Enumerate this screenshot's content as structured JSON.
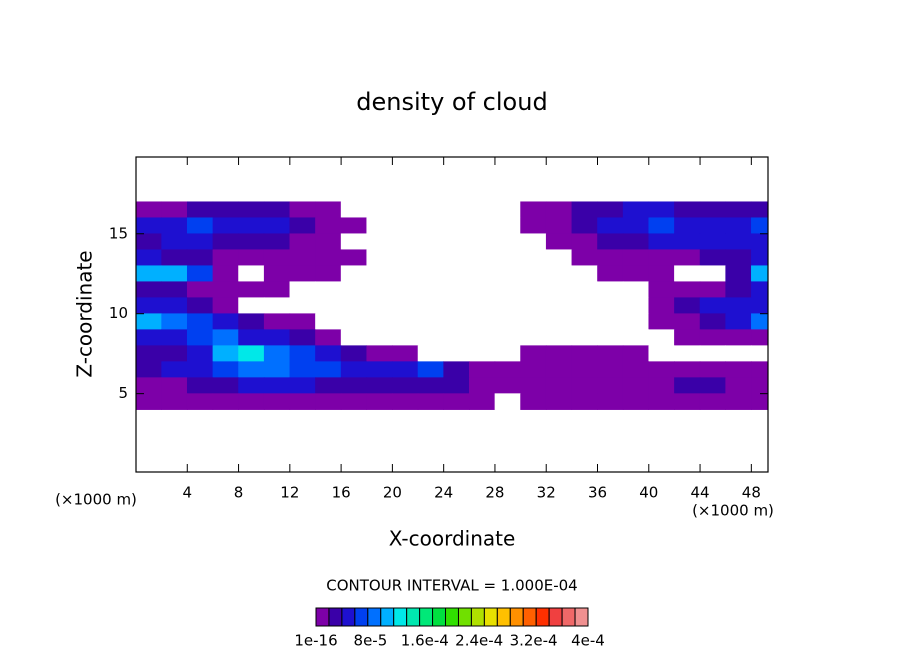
{
  "chart_data": {
    "type": "contour",
    "title": "density of cloud",
    "x_label": "X-coordinate",
    "y_label": "Z-coordinate",
    "x_unit_label": "(×1000 m)",
    "y_unit_label": "(×1000 m)",
    "xlim": [
      0,
      49.3
    ],
    "ylim": [
      0.1,
      19.8
    ],
    "xticks": [
      4,
      8,
      12,
      16,
      20,
      24,
      28,
      32,
      36,
      40,
      44,
      48
    ],
    "yticks": [
      5,
      10,
      15
    ],
    "x": [
      1,
      3,
      5,
      7,
      9,
      11,
      13,
      15,
      17,
      19,
      21,
      23,
      25,
      27,
      29,
      31,
      33,
      35,
      37,
      39,
      41,
      43,
      45,
      47,
      49
    ],
    "y": [
      16.5,
      15.5,
      14.5,
      13.5,
      12.5,
      11.5,
      10.5,
      9.5,
      8.5,
      7.5,
      6.5,
      5.5,
      4.5
    ],
    "z": [
      [
        1e-05,
        1e-05,
        3e-05,
        3e-05,
        3e-05,
        3e-05,
        1e-05,
        1e-05,
        0,
        0,
        0,
        0,
        0,
        0,
        0,
        1e-05,
        1e-05,
        3e-05,
        3e-05,
        5e-05,
        5e-05,
        3e-05,
        3e-05,
        3e-05,
        3e-05
      ],
      [
        5e-05,
        5e-05,
        7e-05,
        5e-05,
        5e-05,
        5e-05,
        3e-05,
        1e-05,
        1e-05,
        0,
        0,
        0,
        0,
        0,
        0,
        1e-05,
        1e-05,
        3e-05,
        5e-05,
        5e-05,
        7e-05,
        5e-05,
        5e-05,
        5e-05,
        7e-05
      ],
      [
        3e-05,
        5e-05,
        5e-05,
        3e-05,
        3e-05,
        3e-05,
        1e-05,
        1e-05,
        0,
        0,
        0,
        0,
        0,
        0,
        0,
        0,
        1e-05,
        1e-05,
        3e-05,
        3e-05,
        5e-05,
        5e-05,
        5e-05,
        5e-05,
        5e-05
      ],
      [
        5e-05,
        3e-05,
        3e-05,
        1e-05,
        1e-05,
        1e-05,
        1e-05,
        1e-05,
        1e-05,
        0,
        0,
        0,
        0,
        0,
        0,
        0,
        0,
        1e-05,
        1e-05,
        1e-05,
        1e-05,
        1e-05,
        3e-05,
        3e-05,
        5e-05
      ],
      [
        0.00011,
        0.00011,
        7e-05,
        1e-05,
        0,
        1e-05,
        1e-05,
        1e-05,
        0,
        0,
        0,
        0,
        0,
        0,
        0,
        0,
        0,
        0,
        1e-05,
        1e-05,
        1e-05,
        0,
        0,
        3e-05,
        0.00011
      ],
      [
        3e-05,
        3e-05,
        1e-05,
        1e-05,
        1e-05,
        1e-05,
        0,
        0,
        0,
        0,
        0,
        0,
        0,
        0,
        0,
        0,
        0,
        0,
        0,
        0,
        1e-05,
        1e-05,
        1e-05,
        3e-05,
        5e-05
      ],
      [
        5e-05,
        5e-05,
        3e-05,
        1e-05,
        0,
        0,
        0,
        0,
        0,
        0,
        0,
        0,
        0,
        0,
        0,
        0,
        0,
        0,
        0,
        0,
        1e-05,
        3e-05,
        5e-05,
        5e-05,
        5e-05
      ],
      [
        0.00011,
        9e-05,
        7e-05,
        5e-05,
        3e-05,
        1e-05,
        1e-05,
        0,
        0,
        0,
        0,
        0,
        0,
        0,
        0,
        0,
        0,
        0,
        0,
        0,
        1e-05,
        1e-05,
        3e-05,
        5e-05,
        9e-05
      ],
      [
        5e-05,
        5e-05,
        7e-05,
        9e-05,
        5e-05,
        5e-05,
        3e-05,
        1e-05,
        0,
        0,
        0,
        0,
        0,
        0,
        0,
        0,
        0,
        0,
        0,
        0,
        0,
        1e-05,
        1e-05,
        1e-05,
        1e-05
      ],
      [
        3e-05,
        3e-05,
        5e-05,
        0.00011,
        0.00013,
        9e-05,
        7e-05,
        5e-05,
        3e-05,
        1e-05,
        1e-05,
        0,
        0,
        0,
        0,
        1e-05,
        1e-05,
        1e-05,
        1e-05,
        1e-05,
        0,
        0,
        0,
        0,
        0
      ],
      [
        3e-05,
        5e-05,
        5e-05,
        7e-05,
        9e-05,
        9e-05,
        7e-05,
        7e-05,
        5e-05,
        5e-05,
        5e-05,
        7e-05,
        3e-05,
        1e-05,
        1e-05,
        1e-05,
        1e-05,
        1e-05,
        1e-05,
        1e-05,
        1e-05,
        1e-05,
        1e-05,
        1e-05,
        1e-05
      ],
      [
        1e-05,
        1e-05,
        3e-05,
        3e-05,
        5e-05,
        5e-05,
        5e-05,
        3e-05,
        3e-05,
        3e-05,
        3e-05,
        3e-05,
        3e-05,
        1e-05,
        1e-05,
        1e-05,
        1e-05,
        1e-05,
        1e-05,
        1e-05,
        1e-05,
        3e-05,
        3e-05,
        1e-05,
        1e-05
      ],
      [
        1e-05,
        1e-05,
        1e-05,
        1e-05,
        1e-05,
        1e-05,
        1e-05,
        1e-05,
        1e-05,
        1e-05,
        1e-05,
        1e-05,
        1e-05,
        1e-05,
        0,
        1e-05,
        1e-05,
        1e-05,
        1e-05,
        1e-05,
        1e-05,
        1e-05,
        1e-05,
        1e-05,
        1e-05
      ]
    ],
    "contour_interval_label": "CONTOUR INTERVAL = 1.000E-04",
    "colorbar": {
      "colors": [
        "#7d00a8",
        "#3a00a8",
        "#1e10d0",
        "#0040f0",
        "#0070ff",
        "#00b0ff",
        "#00e8e8",
        "#00e8b0",
        "#00e878",
        "#00e040",
        "#30e000",
        "#70e000",
        "#b0e000",
        "#e8e000",
        "#ffc000",
        "#ff9000",
        "#ff6000",
        "#ff3000",
        "#f04040",
        "#f06868",
        "#f09090"
      ],
      "ticks": [
        {
          "value": 1e-16,
          "label": "1e-16"
        },
        {
          "value": 8e-05,
          "label": "8e-5"
        },
        {
          "value": 0.00016,
          "label": "1.6e-4"
        },
        {
          "value": 0.00024,
          "label": "2.4e-4"
        },
        {
          "value": 0.00032,
          "label": "3.2e-4"
        },
        {
          "value": 0.0004,
          "label": "4e-4"
        }
      ]
    }
  }
}
